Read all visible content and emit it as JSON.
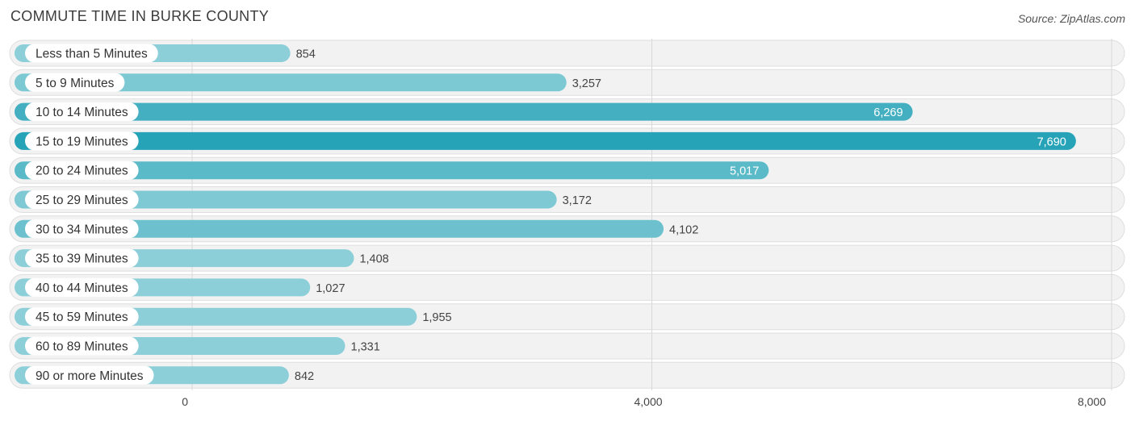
{
  "title": "COMMUTE TIME IN BURKE COUNTY",
  "source": "Source: ZipAtlas.com",
  "chart_data": {
    "type": "bar",
    "orientation": "horizontal",
    "title": "COMMUTE TIME IN BURKE COUNTY",
    "categories": [
      "Less than 5 Minutes",
      "5 to 9 Minutes",
      "10 to 14 Minutes",
      "15 to 19 Minutes",
      "20 to 24 Minutes",
      "25 to 29 Minutes",
      "30 to 34 Minutes",
      "35 to 39 Minutes",
      "40 to 44 Minutes",
      "45 to 59 Minutes",
      "60 to 89 Minutes",
      "90 or more Minutes"
    ],
    "values": [
      854,
      3257,
      6269,
      7690,
      5017,
      3172,
      4102,
      1408,
      1027,
      1955,
      1331,
      842
    ],
    "value_labels": [
      "854",
      "3,257",
      "6,269",
      "7,690",
      "5,017",
      "3,172",
      "4,102",
      "1,408",
      "1,027",
      "1,955",
      "1,331",
      "842"
    ],
    "xlim": [
      0,
      8000
    ],
    "x_ticks": [
      0,
      4000,
      8000
    ],
    "x_tick_labels": [
      "0",
      "4,000",
      "8,000"
    ],
    "grid": true,
    "colors": {
      "bar_light": "#8ccfd8",
      "bar_dark": "#27a3b8",
      "row_bg": "#f2f2f2",
      "row_border": "#dedede",
      "grid": "#d8d8d8",
      "label_text": "#333333",
      "value_text_outside": "#444444",
      "value_text_inside": "#ffffff"
    }
  }
}
